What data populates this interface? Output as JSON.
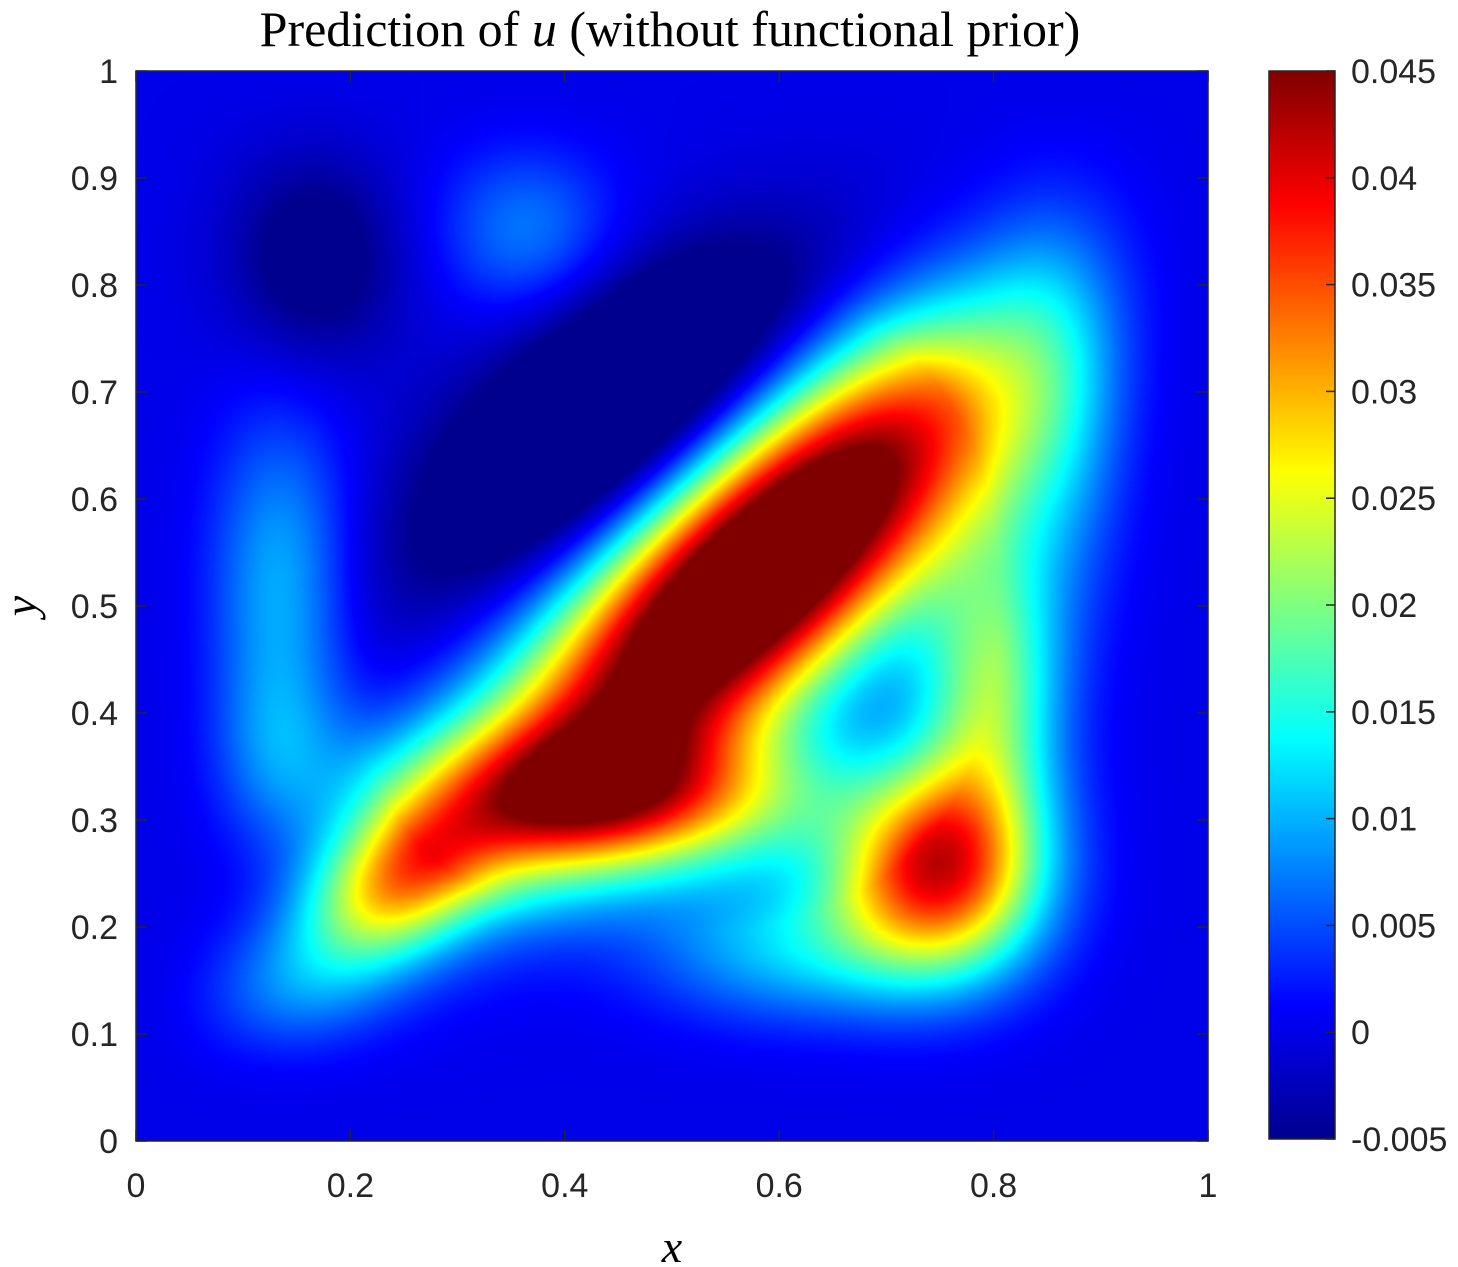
{
  "chart_data": {
    "type": "heatmap",
    "title_prefix": "Prediction of ",
    "title_var": "u",
    "title_suffix": " (without functional prior)",
    "xlabel": "x",
    "ylabel": "y",
    "xlim": [
      0,
      1
    ],
    "ylim": [
      0,
      1
    ],
    "x_ticks": [
      "0",
      "0.2",
      "0.4",
      "0.6",
      "0.8",
      "1"
    ],
    "y_ticks": [
      "0",
      "0.1",
      "0.2",
      "0.3",
      "0.4",
      "0.5",
      "0.6",
      "0.7",
      "0.8",
      "0.9",
      "1"
    ],
    "colorbar": {
      "colormap": "jet",
      "clim": [
        -0.005,
        0.045
      ],
      "ticks": [
        "-0.005",
        "0",
        "0.005",
        "0.01",
        "0.015",
        "0.02",
        "0.025",
        "0.03",
        "0.035",
        "0.04",
        "0.045"
      ]
    },
    "field_components": [
      {
        "cx": 0.58,
        "cy": 0.53,
        "sx": 0.22,
        "sy": 0.075,
        "angle_deg": 43,
        "amp": 0.06
      },
      {
        "cx": 0.76,
        "cy": 0.24,
        "sx": 0.07,
        "sy": 0.07,
        "angle_deg": 0,
        "amp": 0.042
      },
      {
        "cx": 0.8,
        "cy": 0.42,
        "sx": 0.05,
        "sy": 0.1,
        "angle_deg": 0,
        "amp": 0.02
      },
      {
        "cx": 0.23,
        "cy": 0.23,
        "sx": 0.07,
        "sy": 0.045,
        "angle_deg": 35,
        "amp": 0.03
      },
      {
        "cx": 0.12,
        "cy": 0.13,
        "sx": 0.07,
        "sy": 0.045,
        "angle_deg": 10,
        "amp": 0.018
      },
      {
        "cx": 0.45,
        "cy": 0.32,
        "sx": 0.14,
        "sy": 0.05,
        "angle_deg": 0,
        "amp": 0.028
      },
      {
        "cx": 0.62,
        "cy": 0.17,
        "sx": 0.1,
        "sy": 0.05,
        "angle_deg": 0,
        "amp": 0.012
      },
      {
        "cx": 0.87,
        "cy": 0.71,
        "sx": 0.05,
        "sy": 0.14,
        "angle_deg": 0,
        "amp": 0.014
      },
      {
        "cx": 0.12,
        "cy": 0.52,
        "sx": 0.05,
        "sy": 0.12,
        "angle_deg": 0,
        "amp": 0.014
      },
      {
        "cx": 0.12,
        "cy": 0.36,
        "sx": 0.045,
        "sy": 0.06,
        "angle_deg": 0,
        "amp": 0.008
      },
      {
        "cx": 0.36,
        "cy": 0.87,
        "sx": 0.06,
        "sy": 0.06,
        "angle_deg": 0,
        "amp": 0.01
      },
      {
        "cx": 0.15,
        "cy": 0.85,
        "sx": 0.06,
        "sy": 0.075,
        "angle_deg": 0,
        "amp": -0.016
      },
      {
        "cx": 0.45,
        "cy": 0.68,
        "sx": 0.16,
        "sy": 0.07,
        "angle_deg": 40,
        "amp": -0.016
      }
    ]
  }
}
